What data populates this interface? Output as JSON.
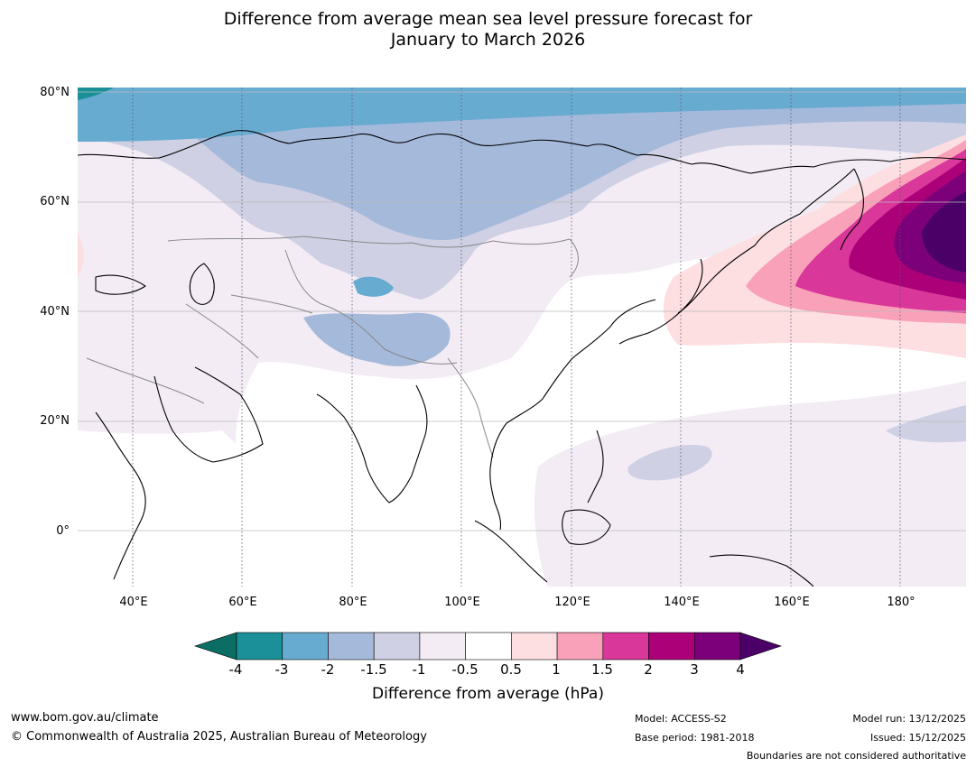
{
  "title": {
    "line1": "Difference from average mean sea level pressure forecast for",
    "line2": "January to March 2026"
  },
  "map": {
    "lat_labels": [
      "80°N",
      "60°N",
      "40°N",
      "20°N",
      "0°"
    ],
    "lon_labels": [
      "40°E",
      "60°E",
      "80°E",
      "100°E",
      "120°E",
      "140°E",
      "160°E",
      "180°"
    ]
  },
  "colorbar": {
    "ticks": [
      "-4",
      "-3",
      "-2",
      "-1.5",
      "-1",
      "-0.5",
      "0.5",
      "1",
      "1.5",
      "2",
      "3",
      "4"
    ],
    "colors": [
      "#0b6d63",
      "#1b9099",
      "#67abd1",
      "#a5b9da",
      "#cfd0e4",
      "#f3ecf5",
      "#ffffff",
      "#fddfe1",
      "#f9a1b9",
      "#d9379a",
      "#ac0079",
      "#7c0079",
      "#4a0067"
    ],
    "label": "Difference from average (hPa)"
  },
  "footer": {
    "website": "www.bom.gov.au/climate",
    "copyright": "© Commonwealth of Australia 2025, Australian Bureau of Meteorology",
    "model": "Model: ACCESS-S2",
    "base_period": "Base period: 1981-2018",
    "model_run": "Model run: 13/12/2025",
    "issued": "Issued: 15/12/2025",
    "disclaimer": "Boundaries are not considered authoritative"
  }
}
